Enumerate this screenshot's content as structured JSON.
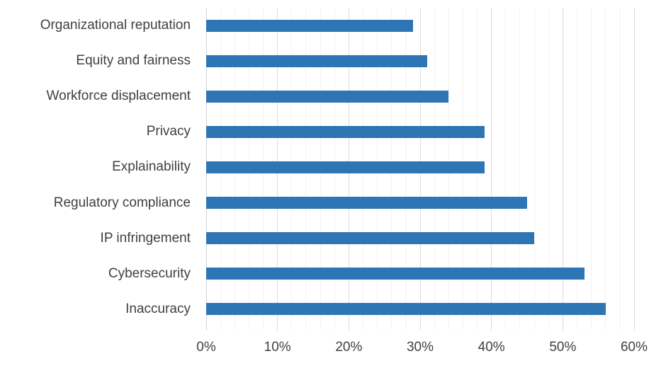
{
  "chart_data": {
    "type": "bar",
    "orientation": "horizontal",
    "title": "",
    "xlabel": "",
    "ylabel": "",
    "categories": [
      "Organizational reputation",
      "Equity and fairness",
      "Workforce displacement",
      "Privacy",
      "Explainability",
      "Regulatory compliance",
      "IP infringement",
      "Cybersecurity",
      "Inaccuracy"
    ],
    "values": [
      29,
      31,
      34,
      39,
      39,
      45,
      46,
      53,
      56
    ],
    "value_unit": "%",
    "xlim": [
      0,
      60
    ],
    "x_ticks": [
      "0%",
      "10%",
      "20%",
      "30%",
      "40%",
      "50%",
      "60%"
    ],
    "x_tick_values": [
      0,
      10,
      20,
      30,
      40,
      50,
      60
    ],
    "grid": true,
    "major_grid_step": 10,
    "minor_grid_step": 2,
    "legend": "none",
    "colors": {
      "bar": "#2E75B6",
      "major_gridline": "#DCDCDC",
      "minor_gridline": "#F2F2F2",
      "zero_line": "#D3D3D3",
      "label_text": "#404040",
      "background": "#FFFFFF"
    }
  }
}
